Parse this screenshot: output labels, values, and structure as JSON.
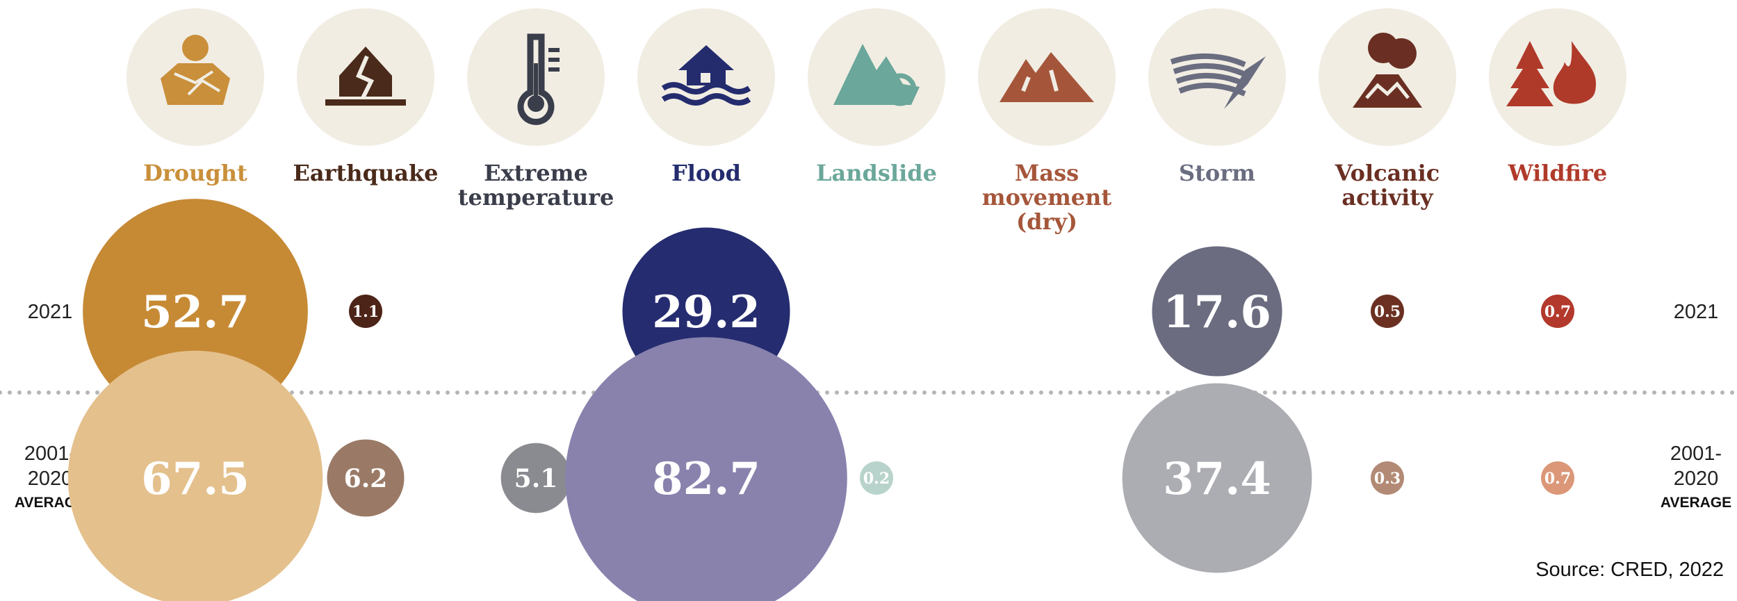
{
  "chart_data": {
    "type": "bubble",
    "source": "Source: CRED, 2022",
    "rows": [
      {
        "key": "2021",
        "label_lines": [
          "2021"
        ],
        "label_bold": ""
      },
      {
        "key": "avg",
        "label_lines": [
          "2001-",
          "2020"
        ],
        "label_bold": "AVERAGE"
      }
    ],
    "categories": [
      {
        "name_lines": [
          "Drought"
        ],
        "icon": "drought-icon",
        "color": "#c98f3a",
        "colors": [
          "#c68a35",
          "#e4c08c"
        ],
        "values": [
          52.7,
          67.5
        ],
        "labels": [
          "52.7",
          "67.5"
        ]
      },
      {
        "name_lines": [
          "Earthquake"
        ],
        "icon": "earthquake-icon",
        "color": "#4a2a1a",
        "colors": [
          "#4d2418",
          "#9a7a66"
        ],
        "values": [
          1.1,
          6.2
        ],
        "labels": [
          "1.1",
          "6.2"
        ]
      },
      {
        "name_lines": [
          "Extreme",
          "temperature"
        ],
        "icon": "thermometer-icon",
        "color": "#3a3d4a",
        "colors": [
          "#2e3240",
          "#8a8b90"
        ],
        "values": [
          0,
          5.1
        ],
        "labels": [
          "0",
          "5.1"
        ]
      },
      {
        "name_lines": [
          "Flood"
        ],
        "icon": "flood-icon",
        "color": "#242c6e",
        "colors": [
          "#252c70",
          "#8882ad"
        ],
        "values": [
          29.2,
          82.7
        ],
        "labels": [
          "29.2",
          "82.7"
        ]
      },
      {
        "name_lines": [
          "Landslide"
        ],
        "icon": "landslide-icon",
        "color": "#6ba79a",
        "colors": [
          "#6aa395",
          "#b8d3cb"
        ],
        "values": [
          0,
          0.2
        ],
        "labels": [
          "0",
          "0.2"
        ]
      },
      {
        "name_lines": [
          "Mass",
          "movement",
          "(dry)"
        ],
        "icon": "mountain-icon",
        "color": "#a5563a",
        "colors": [
          "#a4583d",
          "#d2a284"
        ],
        "values": [
          0,
          0
        ],
        "labels": [
          "0",
          "0"
        ]
      },
      {
        "name_lines": [
          "Storm"
        ],
        "icon": "storm-icon",
        "color": "#6a6d80",
        "colors": [
          "#6b6c80",
          "#acadb3"
        ],
        "values": [
          17.6,
          37.4
        ],
        "labels": [
          "17.6",
          "37.4"
        ]
      },
      {
        "name_lines": [
          "Volcanic",
          "activity"
        ],
        "icon": "volcano-icon",
        "color": "#6a2f22",
        "colors": [
          "#6b3022",
          "#b28a75"
        ],
        "values": [
          0.5,
          0.3
        ],
        "labels": [
          "0.5",
          "0.3"
        ]
      },
      {
        "name_lines": [
          "Wildfire"
        ],
        "icon": "wildfire-icon",
        "color": "#b03a2a",
        "colors": [
          "#b2392b",
          "#db9778"
        ],
        "values": [
          0.7,
          0.7
        ],
        "labels": [
          "0.7",
          "0.7"
        ]
      }
    ]
  }
}
